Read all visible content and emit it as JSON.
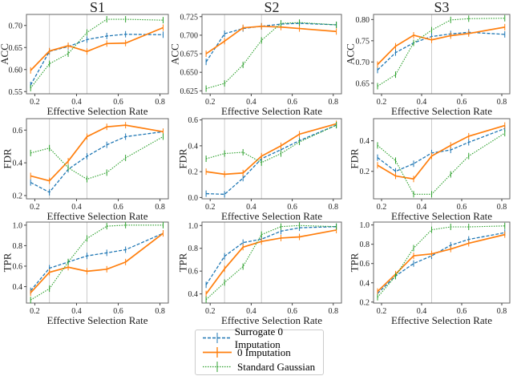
{
  "colors": {
    "surrogate": "#1f77b4",
    "zero": "#ff7f0e",
    "gaussian": "#2ca02c",
    "vline": "#cccccc"
  },
  "legend": [
    {
      "label": "Surrogate 0 Imputation",
      "key": "surrogate",
      "style": "dashed"
    },
    {
      "label": "0 Imputation",
      "key": "zero",
      "style": "solid"
    },
    {
      "label": "Standard Gaussian",
      "key": "gaussian",
      "style": "dotted"
    }
  ],
  "chart_data": [
    {
      "type": "line",
      "title": "S1",
      "xlabel": "Effective Selection Rate",
      "ylabel": "ACC",
      "x": [
        0.18,
        0.27,
        0.36,
        0.45,
        0.545,
        0.635,
        0.815
      ],
      "xlim": [
        0.16,
        0.84
      ],
      "xticks": [
        0.2,
        0.4,
        0.6,
        0.8
      ],
      "ylim": [
        0.545,
        0.725
      ],
      "yticks": [
        0.55,
        0.6,
        0.65,
        0.7
      ],
      "ytick_labels": [
        "0.55",
        "0.60",
        "0.65",
        "0.70"
      ],
      "vlines": [
        0.27,
        0.45
      ],
      "series": [
        {
          "name": "Surrogate 0 Imputation",
          "values": [
            0.565,
            0.641,
            0.652,
            0.668,
            0.676,
            0.68,
            0.679
          ]
        },
        {
          "name": "0 Imputation",
          "values": [
            0.598,
            0.642,
            0.654,
            0.641,
            0.659,
            0.66,
            0.695
          ]
        },
        {
          "name": "Standard Gaussian",
          "values": [
            0.558,
            0.613,
            0.636,
            0.684,
            0.714,
            0.714,
            0.712
          ]
        }
      ]
    },
    {
      "type": "line",
      "title": "S2",
      "xlabel": "Effective Selection Rate",
      "ylabel": "ACC",
      "x": [
        0.18,
        0.27,
        0.36,
        0.45,
        0.545,
        0.635,
        0.815
      ],
      "xlim": [
        0.16,
        0.84
      ],
      "xticks": [
        0.2,
        0.4,
        0.6,
        0.8
      ],
      "ylim": [
        0.621,
        0.728
      ],
      "yticks": [
        0.625,
        0.65,
        0.675,
        0.7,
        0.725
      ],
      "ytick_labels": [
        "0.625",
        "0.650",
        "0.675",
        "0.700",
        "0.725"
      ],
      "vlines": [
        0.27,
        0.45
      ],
      "series": [
        {
          "name": "Surrogate 0 Imputation",
          "values": [
            0.664,
            0.702,
            0.709,
            0.712,
            0.715,
            0.716,
            0.714
          ]
        },
        {
          "name": "0 Imputation",
          "values": [
            0.675,
            0.692,
            0.71,
            0.712,
            0.711,
            0.709,
            0.705
          ]
        },
        {
          "name": "Standard Gaussian",
          "values": [
            0.628,
            0.635,
            0.66,
            0.693,
            0.716,
            0.717,
            0.714
          ]
        }
      ]
    },
    {
      "type": "line",
      "title": "S3",
      "xlabel": "Effective Selection Rate",
      "ylabel": "ACC",
      "x": [
        0.18,
        0.27,
        0.36,
        0.45,
        0.545,
        0.635,
        0.815
      ],
      "xlim": [
        0.16,
        0.84
      ],
      "xticks": [
        0.2,
        0.4,
        0.6,
        0.8
      ],
      "ylim": [
        0.625,
        0.812
      ],
      "yticks": [
        0.65,
        0.7,
        0.75,
        0.8
      ],
      "ytick_labels": [
        "0.65",
        "0.70",
        "0.75",
        "0.80"
      ],
      "vlines": [
        0.45
      ],
      "series": [
        {
          "name": "Surrogate 0 Imputation",
          "values": [
            0.681,
            0.722,
            0.745,
            0.76,
            0.766,
            0.77,
            0.765
          ]
        },
        {
          "name": "0 Imputation",
          "values": [
            0.694,
            0.737,
            0.763,
            0.752,
            0.762,
            0.767,
            0.782
          ]
        },
        {
          "name": "Standard Gaussian",
          "values": [
            0.643,
            0.67,
            0.745,
            0.775,
            0.799,
            0.802,
            0.803
          ]
        }
      ]
    },
    {
      "type": "line",
      "title": "",
      "xlabel": "Effective Selection Rate",
      "ylabel": "FDR",
      "x": [
        0.18,
        0.27,
        0.36,
        0.45,
        0.545,
        0.635,
        0.815
      ],
      "xlim": [
        0.16,
        0.84
      ],
      "xticks": [
        0.2,
        0.4,
        0.6,
        0.8
      ],
      "ylim": [
        0.18,
        0.67
      ],
      "yticks": [
        0.2,
        0.4,
        0.6
      ],
      "ytick_labels": [
        "0.2",
        "0.4",
        "0.6"
      ],
      "vlines": [
        0.27,
        0.45
      ],
      "series": [
        {
          "name": "Surrogate 0 Imputation",
          "values": [
            0.28,
            0.22,
            0.36,
            0.44,
            0.51,
            0.56,
            0.59
          ]
        },
        {
          "name": "0 Imputation",
          "values": [
            0.32,
            0.29,
            0.41,
            0.56,
            0.62,
            0.63,
            0.59
          ]
        },
        {
          "name": "Standard Gaussian",
          "values": [
            0.46,
            0.49,
            0.37,
            0.3,
            0.34,
            0.43,
            0.56
          ]
        }
      ]
    },
    {
      "type": "line",
      "title": "",
      "xlabel": "Effective Selection Rate",
      "ylabel": "FDR",
      "x": [
        0.18,
        0.27,
        0.36,
        0.45,
        0.545,
        0.635,
        0.815
      ],
      "xlim": [
        0.16,
        0.84
      ],
      "xticks": [
        0.2,
        0.4,
        0.6,
        0.8
      ],
      "ylim": [
        -0.01,
        0.61
      ],
      "yticks": [
        0.0,
        0.2,
        0.4,
        0.6
      ],
      "ytick_labels": [
        "0.0",
        "0.2",
        "0.4",
        "0.6"
      ],
      "vlines": [
        0.27,
        0.45
      ],
      "series": [
        {
          "name": "Surrogate 0 Imputation",
          "values": [
            0.03,
            0.025,
            0.15,
            0.3,
            0.37,
            0.44,
            0.56
          ]
        },
        {
          "name": "0 Imputation",
          "values": [
            0.2,
            0.18,
            0.19,
            0.32,
            0.4,
            0.49,
            0.57
          ]
        },
        {
          "name": "Standard Gaussian",
          "values": [
            0.3,
            0.34,
            0.35,
            0.27,
            0.34,
            0.43,
            0.56
          ]
        }
      ]
    },
    {
      "type": "line",
      "title": "",
      "xlabel": "Effective Selection Rate",
      "ylabel": "FDR",
      "x": [
        0.18,
        0.27,
        0.36,
        0.45,
        0.545,
        0.635,
        0.815
      ],
      "xlim": [
        0.16,
        0.84
      ],
      "xticks": [
        0.2,
        0.4,
        0.6,
        0.8
      ],
      "ylim": [
        0.02,
        0.545
      ],
      "yticks": [
        0.2,
        0.4
      ],
      "ytick_labels": [
        "0.2",
        "0.4"
      ],
      "vlines": [
        0.45
      ],
      "series": [
        {
          "name": "Surrogate 0 Imputation",
          "values": [
            0.29,
            0.2,
            0.25,
            0.32,
            0.34,
            0.39,
            0.48
          ]
        },
        {
          "name": "0 Imputation",
          "values": [
            0.24,
            0.17,
            0.15,
            0.3,
            0.37,
            0.43,
            0.5
          ]
        },
        {
          "name": "Standard Gaussian",
          "values": [
            0.37,
            0.27,
            0.05,
            0.05,
            0.18,
            0.3,
            0.45
          ]
        }
      ]
    },
    {
      "type": "line",
      "title": "",
      "xlabel": "Effective Selection Rate",
      "ylabel": "TPR",
      "x": [
        0.18,
        0.27,
        0.36,
        0.45,
        0.545,
        0.635,
        0.815
      ],
      "xlim": [
        0.16,
        0.84
      ],
      "xticks": [
        0.2,
        0.4,
        0.6,
        0.8
      ],
      "ylim": [
        0.24,
        1.03
      ],
      "yticks": [
        0.4,
        0.6,
        0.8,
        1.0
      ],
      "ytick_labels": [
        "0.4",
        "0.6",
        "0.8",
        "1.0"
      ],
      "vlines": [
        0.27,
        0.45
      ],
      "series": [
        {
          "name": "Surrogate 0 Imputation",
          "values": [
            0.36,
            0.58,
            0.64,
            0.7,
            0.73,
            0.76,
            0.92
          ]
        },
        {
          "name": "0 Imputation",
          "values": [
            0.34,
            0.54,
            0.59,
            0.55,
            0.57,
            0.64,
            0.92
          ]
        },
        {
          "name": "Standard Gaussian",
          "values": [
            0.27,
            0.38,
            0.64,
            0.87,
            0.99,
            1.0,
            1.0
          ]
        }
      ]
    },
    {
      "type": "line",
      "title": "",
      "xlabel": "Effective Selection Rate",
      "ylabel": "TPR",
      "x": [
        0.18,
        0.27,
        0.36,
        0.45,
        0.545,
        0.635,
        0.815
      ],
      "xlim": [
        0.16,
        0.84
      ],
      "xticks": [
        0.2,
        0.4,
        0.6,
        0.8
      ],
      "ylim": [
        0.32,
        1.03
      ],
      "yticks": [
        0.4,
        0.6,
        0.8,
        1.0
      ],
      "ytick_labels": [
        "0.4",
        "0.6",
        "0.8",
        "1.0"
      ],
      "vlines": [
        0.27,
        0.45
      ],
      "series": [
        {
          "name": "Surrogate 0 Imputation",
          "values": [
            0.48,
            0.73,
            0.85,
            0.88,
            0.95,
            0.98,
            0.99
          ]
        },
        {
          "name": "0 Imputation",
          "values": [
            0.4,
            0.62,
            0.81,
            0.86,
            0.89,
            0.9,
            0.96
          ]
        },
        {
          "name": "Standard Gaussian",
          "values": [
            0.35,
            0.5,
            0.64,
            0.92,
            0.99,
            1.0,
            0.99
          ]
        }
      ]
    },
    {
      "type": "line",
      "title": "",
      "xlabel": "Effective Selection Rate",
      "ylabel": "TPR",
      "x": [
        0.18,
        0.27,
        0.36,
        0.45,
        0.545,
        0.635,
        0.815
      ],
      "xlim": [
        0.16,
        0.84
      ],
      "xticks": [
        0.2,
        0.4,
        0.6,
        0.8
      ],
      "ylim": [
        0.19,
        1.03
      ],
      "yticks": [
        0.2,
        0.4,
        0.6,
        0.8,
        1.0
      ],
      "ytick_labels": [
        "0.2",
        "0.4",
        "0.6",
        "0.8",
        "1.0"
      ],
      "vlines": [
        0.45
      ],
      "series": [
        {
          "name": "Surrogate 0 Imputation",
          "values": [
            0.29,
            0.47,
            0.6,
            0.68,
            0.79,
            0.85,
            0.92
          ]
        },
        {
          "name": "0 Imputation",
          "values": [
            0.31,
            0.49,
            0.68,
            0.7,
            0.75,
            0.81,
            0.9
          ]
        },
        {
          "name": "Standard Gaussian",
          "values": [
            0.25,
            0.47,
            0.76,
            0.95,
            0.98,
            0.98,
            0.99
          ]
        }
      ]
    }
  ]
}
